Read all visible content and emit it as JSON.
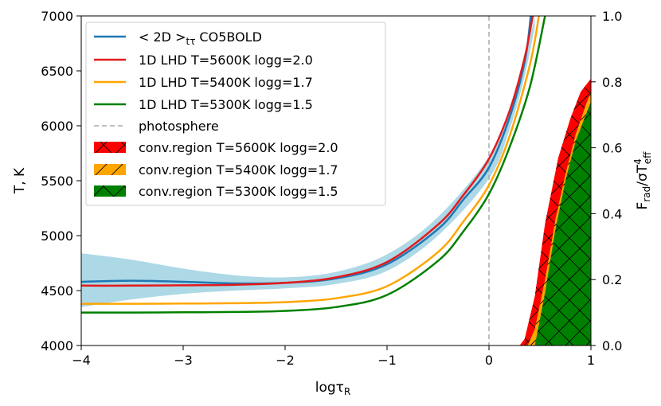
{
  "chart_data": {
    "type": "line",
    "xlabel": "logτ",
    "xlabel_sub": "R",
    "ylabel": "T, K",
    "y2label_parts": [
      "F",
      "rad",
      "/σT",
      "4",
      "eff"
    ],
    "xlim": [
      -4,
      1
    ],
    "ylim": [
      4000,
      7000
    ],
    "y2lim": [
      0.0,
      1.0
    ],
    "xticks": [
      -4,
      -3,
      -2,
      -1,
      0,
      1
    ],
    "xtick_labels": [
      "−4",
      "−3",
      "−2",
      "−1",
      "0",
      "1"
    ],
    "yticks": [
      4000,
      4500,
      5000,
      5500,
      6000,
      6500,
      7000
    ],
    "ytick_labels": [
      "4000",
      "4500",
      "5000",
      "5500",
      "6000",
      "6500",
      "7000"
    ],
    "y2ticks": [
      0.0,
      0.2,
      0.4,
      0.6,
      0.8,
      1.0
    ],
    "y2tick_labels": [
      "0.0",
      "0.2",
      "0.4",
      "0.6",
      "0.8",
      "1.0"
    ],
    "photosphere_x": 0,
    "band": {
      "name": "<2D> spread",
      "color": "#add8e6",
      "x": [
        -4,
        -3.5,
        -3,
        -2.5,
        -2,
        -1.5,
        -1,
        -0.5,
        0,
        0.2,
        0.35,
        0.45
      ],
      "upper": [
        4840,
        4780,
        4700,
        4640,
        4620,
        4670,
        4830,
        5170,
        5720,
        6150,
        6600,
        7000
      ],
      "lower": [
        4350,
        4420,
        4470,
        4500,
        4520,
        4560,
        4680,
        5000,
        5520,
        5960,
        6450,
        6900
      ]
    },
    "series": [
      {
        "name": "< 2D >",
        "label_sub": "tτ",
        "label_tail": "CO5BOLD",
        "color": "#1f77b4",
        "x": [
          -4,
          -3.5,
          -3,
          -2.5,
          -2,
          -1.5,
          -1,
          -0.5,
          -0.25,
          0,
          0.2,
          0.35,
          0.41
        ],
        "y": [
          4580,
          4590,
          4580,
          4565,
          4570,
          4610,
          4740,
          5060,
          5330,
          5620,
          6070,
          6580,
          7000
        ]
      },
      {
        "name": "1D LHD T=5600K logg=2.0",
        "color": "#e41a1c",
        "x": [
          -4,
          -3.5,
          -3,
          -2.5,
          -2,
          -1.5,
          -1,
          -0.5,
          -0.25,
          0,
          0.2,
          0.35,
          0.43
        ],
        "y": [
          4545,
          4545,
          4548,
          4552,
          4570,
          4620,
          4760,
          5100,
          5370,
          5700,
          6130,
          6620,
          7000
        ]
      },
      {
        "name": "1D LHD T=5400K logg=1.7",
        "color": "#ffa500",
        "x": [
          -4,
          -3.5,
          -3,
          -2.5,
          -2,
          -1.5,
          -1,
          -0.5,
          -0.25,
          0,
          0.2,
          0.4,
          0.49
        ],
        "y": [
          4380,
          4380,
          4382,
          4385,
          4395,
          4430,
          4540,
          4850,
          5130,
          5460,
          5900,
          6550,
          7000
        ]
      },
      {
        "name": "1D LHD T=5300K logg=1.5",
        "color": "#008000",
        "x": [
          -4,
          -3.5,
          -3,
          -2.5,
          -2,
          -1.5,
          -1,
          -0.5,
          -0.25,
          0,
          0.2,
          0.4,
          0.55
        ],
        "y": [
          4300,
          4300,
          4302,
          4305,
          4315,
          4350,
          4460,
          4770,
          5040,
          5380,
          5800,
          6350,
          7000
        ]
      }
    ],
    "photosphere_label": "photosphere",
    "conv_regions": [
      {
        "name": "conv.region T=5600K logg=2.0",
        "color": "#ff0000",
        "hatch": "x",
        "x": [
          0.3,
          0.35,
          0.45,
          0.55,
          0.68,
          0.8,
          0.9,
          1.0
        ],
        "y2": [
          0.0,
          0.02,
          0.15,
          0.37,
          0.57,
          0.69,
          0.77,
          0.81
        ]
      },
      {
        "name": "conv.region T=5400K logg=1.7",
        "color": "#ffa500",
        "hatch": "/",
        "x": [
          0.38,
          0.45,
          0.55,
          0.65,
          0.75,
          0.85,
          0.95,
          1.0
        ],
        "y2": [
          0.0,
          0.05,
          0.2,
          0.38,
          0.52,
          0.64,
          0.73,
          0.77
        ]
      },
      {
        "name": "conv.region T=5300K logg=1.5",
        "color": "#008000",
        "hatch": "x",
        "x": [
          0.45,
          0.55,
          0.65,
          0.75,
          0.85,
          0.95,
          1.0
        ],
        "y2": [
          0.0,
          0.16,
          0.35,
          0.5,
          0.62,
          0.7,
          0.74
        ]
      }
    ],
    "legend_location": "top-left"
  }
}
